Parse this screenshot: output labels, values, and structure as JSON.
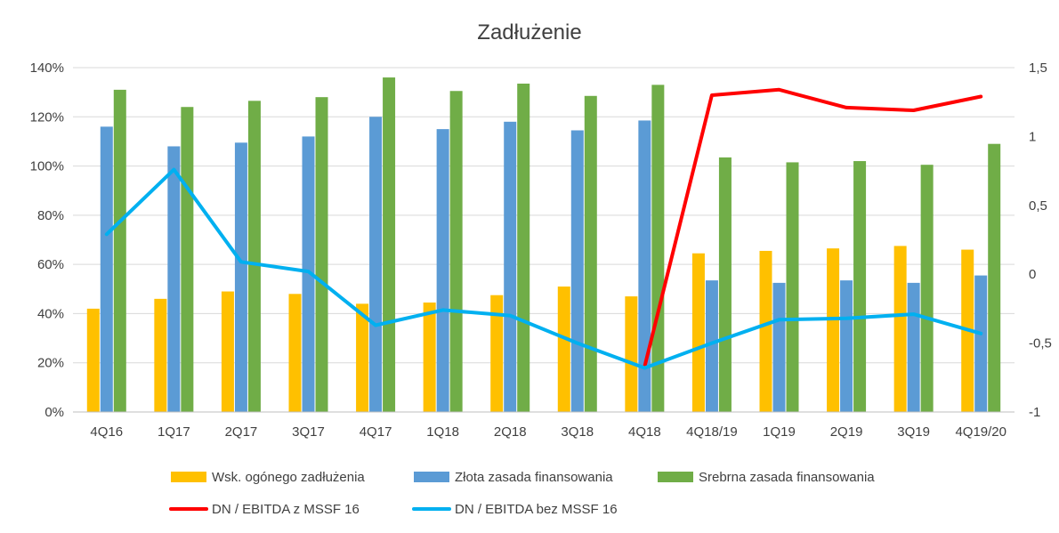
{
  "chart_data": {
    "type": "bar",
    "title": "Zadłużenie",
    "categories": [
      "4Q16",
      "1Q17",
      "2Q17",
      "3Q17",
      "4Q17",
      "1Q18",
      "2Q18",
      "3Q18",
      "4Q18",
      "4Q18/19",
      "1Q19",
      "2Q19",
      "3Q19",
      "4Q19/20"
    ],
    "ylim_left": [
      0,
      140
    ],
    "yticks_left": [
      "0%",
      "20%",
      "40%",
      "60%",
      "80%",
      "100%",
      "120%",
      "140%"
    ],
    "ylim_right": [
      -1,
      1.5
    ],
    "yticks_right": [
      "-1",
      "-0,5",
      "0",
      "0,5",
      "1",
      "1,5"
    ],
    "grid": true,
    "legend_position": "bottom",
    "series": [
      {
        "name": "Wsk. ogónego zadłużenia",
        "type": "bar",
        "axis": "left",
        "color": "#FFC000",
        "values": [
          42,
          46,
          49,
          48,
          44,
          44.5,
          47.5,
          51,
          47,
          64.5,
          65.5,
          66.5,
          67.5,
          66
        ]
      },
      {
        "name": "Złota zasada finansowania",
        "type": "bar",
        "axis": "left",
        "color": "#5B9BD5",
        "values": [
          116,
          108,
          109.5,
          112,
          120,
          115,
          118,
          114.5,
          118.5,
          53.5,
          52.5,
          53.5,
          52.5,
          55.5
        ]
      },
      {
        "name": "Srebrna zasada finansowania",
        "type": "bar",
        "axis": "left",
        "color": "#70AD47",
        "values": [
          131,
          124,
          126.5,
          128,
          136,
          130.5,
          133.5,
          128.5,
          133,
          103.5,
          101.5,
          102,
          100.5,
          109
        ]
      },
      {
        "name": "DN / EBITDA z MSSF 16",
        "type": "line",
        "axis": "right",
        "color": "#FF0000",
        "values": [
          null,
          null,
          null,
          null,
          null,
          null,
          null,
          null,
          -0.67,
          1.3,
          1.34,
          1.21,
          1.19,
          1.29
        ]
      },
      {
        "name": "DN / EBITDA bez MSSF 16",
        "type": "line",
        "axis": "right",
        "color": "#00B0F0",
        "values": [
          0.29,
          0.76,
          0.09,
          0.02,
          -0.37,
          -0.26,
          -0.3,
          -0.5,
          -0.68,
          -0.5,
          -0.33,
          -0.32,
          -0.29,
          -0.43
        ]
      }
    ]
  }
}
